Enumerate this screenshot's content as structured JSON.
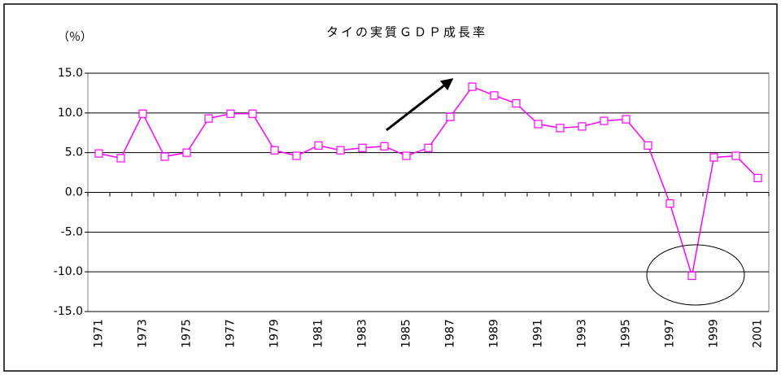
{
  "chart_data": {
    "type": "line",
    "title": "タイの実質ＧＤＰ成長率",
    "y_label": "（％）",
    "categories": [
      "1971",
      null,
      "1973",
      null,
      "1975",
      null,
      "1977",
      null,
      "1979",
      null,
      "1981",
      null,
      "1983",
      null,
      "1985",
      null,
      "1987",
      null,
      "1989",
      null,
      "1991",
      null,
      "1993",
      null,
      "1995",
      null,
      "1997",
      null,
      "1999",
      null,
      "2001"
    ],
    "series": [
      {
        "color": "#ff00ff",
        "values": [
          4.9,
          4.3,
          9.9,
          4.5,
          5.0,
          9.3,
          9.9,
          9.9,
          5.3,
          4.6,
          5.9,
          5.3,
          5.6,
          5.8,
          4.6,
          5.6,
          9.5,
          13.3,
          12.2,
          11.2,
          8.6,
          8.1,
          8.3,
          9.0,
          9.2,
          5.9,
          -1.4,
          -10.5,
          4.4,
          4.6,
          1.8
        ]
      }
    ],
    "ylim": [
      -15,
      15
    ],
    "yticks": [
      {
        "value": -15,
        "label": "-15.0"
      },
      {
        "value": -10,
        "label": "-10.0"
      },
      {
        "value": -5,
        "label": "-5.0"
      },
      {
        "value": 0,
        "label": "0.0"
      },
      {
        "value": 5,
        "label": "5.0"
      },
      {
        "value": 10,
        "label": "10.0"
      },
      {
        "value": 15,
        "label": "15.0"
      }
    ],
    "grid": true
  }
}
